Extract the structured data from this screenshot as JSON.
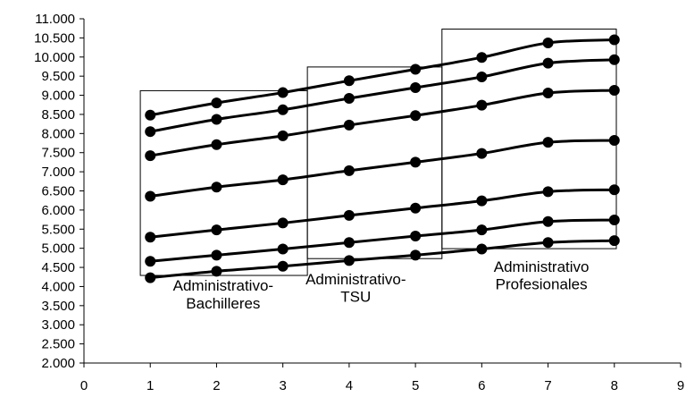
{
  "chart_data": {
    "type": "line",
    "title": "",
    "xlabel": "",
    "ylabel": "",
    "xlim": [
      0,
      9
    ],
    "ylim": [
      2000,
      11000
    ],
    "x_ticks": [
      0,
      1,
      2,
      3,
      4,
      5,
      6,
      7,
      8,
      9
    ],
    "y_ticks": [
      2000,
      2500,
      3000,
      3500,
      4000,
      4500,
      5000,
      5500,
      6000,
      6500,
      7000,
      7500,
      8000,
      8500,
      9000,
      9500,
      10000,
      10500,
      11000
    ],
    "x_tick_labels": [
      "0",
      "1",
      "2",
      "3",
      "4",
      "5",
      "6",
      "7",
      "8",
      "9"
    ],
    "y_tick_labels": [
      "2.000",
      "2.500",
      "3.000",
      "3.500",
      "4.000",
      "4.500",
      "5.000",
      "5.500",
      "6.000",
      "6.500",
      "7.000",
      "7.500",
      "8.000",
      "8.500",
      "9.000",
      "9.500",
      "10.000",
      "10.500",
      "11.000"
    ],
    "grid": false,
    "legend": "none",
    "line_color": "#000000",
    "x": [
      1,
      2,
      3,
      4,
      5,
      6,
      7,
      8
    ],
    "series": [
      {
        "values": [
          4230,
          4400,
          4530,
          4680,
          4820,
          4980,
          5150,
          5200
        ]
      },
      {
        "values": [
          4660,
          4820,
          4980,
          5150,
          5320,
          5480,
          5700,
          5740
        ]
      },
      {
        "values": [
          5290,
          5480,
          5660,
          5860,
          6050,
          6240,
          6480,
          6530
        ]
      },
      {
        "values": [
          6360,
          6600,
          6790,
          7030,
          7250,
          7480,
          7770,
          7820
        ]
      },
      {
        "values": [
          7420,
          7710,
          7940,
          8220,
          8470,
          8740,
          9060,
          9130
        ]
      },
      {
        "values": [
          8050,
          8370,
          8620,
          8920,
          9200,
          9480,
          9840,
          9930
        ]
      },
      {
        "values": [
          8480,
          8800,
          9070,
          9380,
          9680,
          9990,
          10370,
          10450
        ]
      }
    ],
    "annotations": [
      {
        "text": "Administrativo-",
        "x": 2.1,
        "y": 3890
      },
      {
        "text": "Bachilleres",
        "x": 2.1,
        "y": 3430
      },
      {
        "text": "Administrativo-",
        "x": 4.1,
        "y": 4060
      },
      {
        "text": "TSU",
        "x": 4.1,
        "y": 3600
      },
      {
        "text": "Administrativo",
        "x": 6.9,
        "y": 4390
      },
      {
        "text": "Profesionales",
        "x": 6.9,
        "y": 3930
      }
    ],
    "boxes": [
      {
        "x0": 0.85,
        "x1": 3.37,
        "y0": 4290,
        "y1": 9120
      },
      {
        "x0": 3.37,
        "x1": 5.4,
        "y0": 4730,
        "y1": 9740
      },
      {
        "x0": 5.4,
        "x1": 8.03,
        "y0": 4990,
        "y1": 10730
      }
    ]
  }
}
